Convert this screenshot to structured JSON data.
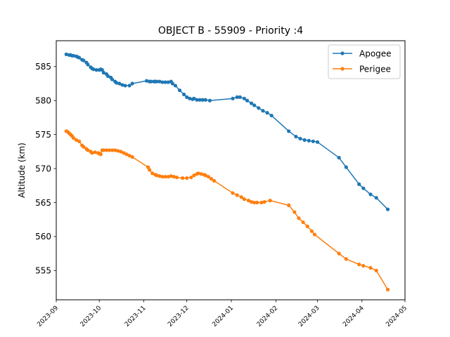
{
  "chart_data": {
    "type": "line",
    "title": "OBJECT B - 55909 - Priority :4",
    "xlabel": "",
    "ylabel": "Altitude (km)",
    "x_axis": {
      "type": "date",
      "min": "2023-09-01",
      "max": "2024-05-01",
      "ticks": [
        "2023-09",
        "2023-10",
        "2023-11",
        "2023-12",
        "2024-01",
        "2024-02",
        "2024-03",
        "2024-04",
        "2024-05"
      ]
    },
    "ylim": [
      550.7,
      588.8
    ],
    "yticks": [
      555,
      560,
      565,
      570,
      575,
      580,
      585
    ],
    "grid": false,
    "legend": {
      "placement": "top-right",
      "entries": [
        "Apogee",
        "Perigee"
      ]
    },
    "colors": {
      "Apogee": "#1f77b4",
      "Perigee": "#ff7f0e"
    },
    "series": [
      {
        "name": "Apogee",
        "points": [
          [
            "2023-09-08",
            586.8
          ],
          [
            "2023-09-10",
            586.7
          ],
          [
            "2023-09-11",
            586.7
          ],
          [
            "2023-09-12",
            586.6
          ],
          [
            "2023-09-13",
            586.6
          ],
          [
            "2023-09-15",
            586.5
          ],
          [
            "2023-09-16",
            586.4
          ],
          [
            "2023-09-17",
            586.3
          ],
          [
            "2023-09-19",
            586.0
          ],
          [
            "2023-09-20",
            585.9
          ],
          [
            "2023-09-22",
            585.6
          ],
          [
            "2023-09-23",
            585.3
          ],
          [
            "2023-09-25",
            584.9
          ],
          [
            "2023-09-26",
            584.7
          ],
          [
            "2023-09-27",
            584.6
          ],
          [
            "2023-09-29",
            584.5
          ],
          [
            "2023-10-01",
            584.5
          ],
          [
            "2023-10-02",
            584.6
          ],
          [
            "2023-10-03",
            584.5
          ],
          [
            "2023-10-04",
            584.1
          ],
          [
            "2023-10-06",
            583.9
          ],
          [
            "2023-10-07",
            583.6
          ],
          [
            "2023-10-09",
            583.4
          ],
          [
            "2023-10-10",
            583.1
          ],
          [
            "2023-10-12",
            582.8
          ],
          [
            "2023-10-13",
            582.6
          ],
          [
            "2023-10-15",
            582.5
          ],
          [
            "2023-10-17",
            582.3
          ],
          [
            "2023-10-19",
            582.2
          ],
          [
            "2023-10-22",
            582.2
          ],
          [
            "2023-10-24",
            582.5
          ],
          [
            "2023-11-03",
            582.9
          ],
          [
            "2023-11-05",
            582.8
          ],
          [
            "2023-11-06",
            582.8
          ],
          [
            "2023-11-08",
            582.8
          ],
          [
            "2023-11-09",
            582.8
          ],
          [
            "2023-11-10",
            582.8
          ],
          [
            "2023-11-12",
            582.8
          ],
          [
            "2023-11-14",
            582.7
          ],
          [
            "2023-11-16",
            582.7
          ],
          [
            "2023-11-18",
            582.7
          ],
          [
            "2023-11-20",
            582.8
          ],
          [
            "2023-11-21",
            582.5
          ],
          [
            "2023-11-23",
            582.2
          ],
          [
            "2023-11-26",
            581.5
          ],
          [
            "2023-11-29",
            580.9
          ],
          [
            "2023-12-01",
            580.5
          ],
          [
            "2023-12-03",
            580.3
          ],
          [
            "2023-12-05",
            580.2
          ],
          [
            "2023-12-06",
            580.3
          ],
          [
            "2023-12-08",
            580.1
          ],
          [
            "2023-12-10",
            580.1
          ],
          [
            "2023-12-12",
            580.1
          ],
          [
            "2023-12-14",
            580.1
          ],
          [
            "2023-12-17",
            580.0
          ],
          [
            "2024-01-02",
            580.3
          ],
          [
            "2024-01-05",
            580.5
          ],
          [
            "2024-01-07",
            580.5
          ],
          [
            "2024-01-10",
            580.3
          ],
          [
            "2024-01-12",
            580.0
          ],
          [
            "2024-01-15",
            579.6
          ],
          [
            "2024-01-17",
            579.3
          ],
          [
            "2024-01-20",
            578.9
          ],
          [
            "2024-01-23",
            578.5
          ],
          [
            "2024-01-26",
            578.2
          ],
          [
            "2024-01-29",
            577.8
          ],
          [
            "2024-02-10",
            575.5
          ],
          [
            "2024-02-15",
            574.7
          ],
          [
            "2024-02-18",
            574.4
          ],
          [
            "2024-02-21",
            574.2
          ],
          [
            "2024-02-24",
            574.1
          ],
          [
            "2024-02-27",
            574.0
          ],
          [
            "2024-03-01",
            573.9
          ],
          [
            "2024-03-16",
            571.6
          ],
          [
            "2024-03-21",
            570.2
          ],
          [
            "2024-03-30",
            567.7
          ],
          [
            "2024-04-02",
            567.1
          ],
          [
            "2024-04-07",
            566.2
          ],
          [
            "2024-04-11",
            565.7
          ],
          [
            "2024-04-19",
            564.0
          ]
        ]
      },
      {
        "name": "Perigee",
        "points": [
          [
            "2023-09-08",
            575.5
          ],
          [
            "2023-09-09",
            575.4
          ],
          [
            "2023-09-10",
            575.2
          ],
          [
            "2023-09-11",
            575.0
          ],
          [
            "2023-09-12",
            574.8
          ],
          [
            "2023-09-13",
            574.5
          ],
          [
            "2023-09-15",
            574.2
          ],
          [
            "2023-09-17",
            574.0
          ],
          [
            "2023-09-19",
            573.4
          ],
          [
            "2023-09-20",
            573.2
          ],
          [
            "2023-09-22",
            572.9
          ],
          [
            "2023-09-23",
            572.7
          ],
          [
            "2023-09-25",
            572.5
          ],
          [
            "2023-09-26",
            572.3
          ],
          [
            "2023-09-28",
            572.4
          ],
          [
            "2023-09-30",
            572.3
          ],
          [
            "2023-10-01",
            572.2
          ],
          [
            "2023-10-02",
            572.1
          ],
          [
            "2023-10-03",
            572.7
          ],
          [
            "2023-10-04",
            572.7
          ],
          [
            "2023-10-06",
            572.7
          ],
          [
            "2023-10-08",
            572.7
          ],
          [
            "2023-10-10",
            572.7
          ],
          [
            "2023-10-12",
            572.7
          ],
          [
            "2023-10-14",
            572.6
          ],
          [
            "2023-10-16",
            572.5
          ],
          [
            "2023-10-18",
            572.3
          ],
          [
            "2023-10-20",
            572.1
          ],
          [
            "2023-10-22",
            571.9
          ],
          [
            "2023-10-24",
            571.7
          ],
          [
            "2023-11-04",
            570.2
          ],
          [
            "2023-11-05",
            569.8
          ],
          [
            "2023-11-07",
            569.3
          ],
          [
            "2023-11-09",
            569.1
          ],
          [
            "2023-11-10",
            569.0
          ],
          [
            "2023-11-12",
            568.9
          ],
          [
            "2023-11-14",
            568.8
          ],
          [
            "2023-11-16",
            568.8
          ],
          [
            "2023-11-18",
            568.8
          ],
          [
            "2023-11-20",
            568.9
          ],
          [
            "2023-11-22",
            568.8
          ],
          [
            "2023-11-24",
            568.7
          ],
          [
            "2023-11-28",
            568.6
          ],
          [
            "2023-12-01",
            568.6
          ],
          [
            "2023-12-04",
            568.7
          ],
          [
            "2023-12-06",
            569.0
          ],
          [
            "2023-12-08",
            569.2
          ],
          [
            "2023-12-09",
            569.3
          ],
          [
            "2023-12-11",
            569.2
          ],
          [
            "2023-12-13",
            569.1
          ],
          [
            "2023-12-14",
            569.0
          ],
          [
            "2023-12-16",
            568.8
          ],
          [
            "2023-12-18",
            568.5
          ],
          [
            "2023-12-20",
            568.2
          ],
          [
            "2024-01-02",
            566.4
          ],
          [
            "2024-01-05",
            566.1
          ],
          [
            "2024-01-08",
            565.8
          ],
          [
            "2024-01-10",
            565.5
          ],
          [
            "2024-01-13",
            565.3
          ],
          [
            "2024-01-15",
            565.1
          ],
          [
            "2024-01-17",
            565.0
          ],
          [
            "2024-01-19",
            565.0
          ],
          [
            "2024-01-22",
            565.0
          ],
          [
            "2024-01-24",
            565.1
          ],
          [
            "2024-01-28",
            565.3
          ],
          [
            "2024-02-10",
            564.6
          ],
          [
            "2024-02-14",
            563.6
          ],
          [
            "2024-02-17",
            562.7
          ],
          [
            "2024-02-20",
            562.1
          ],
          [
            "2024-02-23",
            561.5
          ],
          [
            "2024-02-26",
            560.8
          ],
          [
            "2024-02-28",
            560.3
          ],
          [
            "2024-03-16",
            557.5
          ],
          [
            "2024-03-21",
            556.7
          ],
          [
            "2024-03-30",
            555.9
          ],
          [
            "2024-04-02",
            555.7
          ],
          [
            "2024-04-07",
            555.4
          ],
          [
            "2024-04-11",
            555.0
          ],
          [
            "2024-04-19",
            552.2
          ]
        ]
      }
    ]
  }
}
